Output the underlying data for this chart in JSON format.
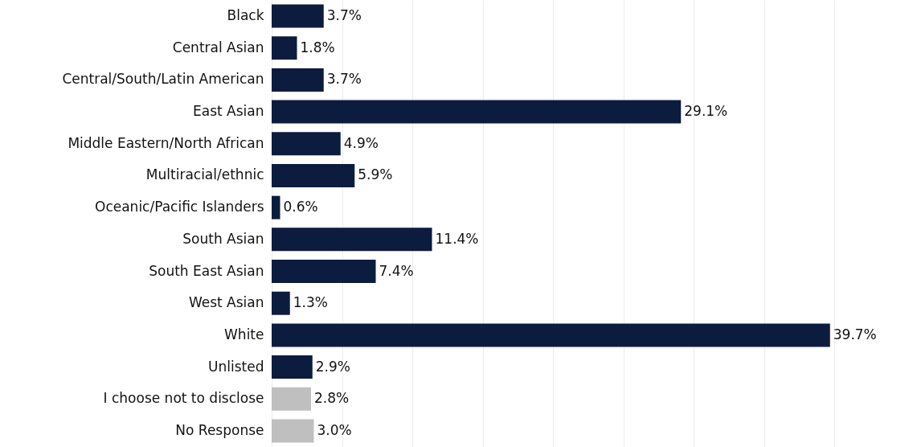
{
  "chart_data": {
    "type": "bar",
    "orientation": "horizontal",
    "categories": [
      "Black",
      "Central Asian",
      "Central/South/Latin American",
      "East Asian",
      "Middle Eastern/North African",
      "Multiracial/ethnic",
      "Oceanic/Pacific Islanders",
      "South Asian",
      "South East Asian",
      "West Asian",
      "White",
      "Unlisted",
      "I choose not to disclose",
      "No Response"
    ],
    "values": [
      3.7,
      1.8,
      3.7,
      29.1,
      4.9,
      5.9,
      0.6,
      11.4,
      7.4,
      1.3,
      39.7,
      2.9,
      2.8,
      3.0
    ],
    "value_labels": [
      "3.7%",
      "1.8%",
      "3.7%",
      "29.1%",
      "4.9%",
      "5.9%",
      "0.6%",
      "11.4%",
      "7.4%",
      "1.3%",
      "39.7%",
      "2.9%",
      "2.8%",
      "3.0%"
    ],
    "colors": [
      "#0c1c3e",
      "#0c1c3e",
      "#0c1c3e",
      "#0c1c3e",
      "#0c1c3e",
      "#0c1c3e",
      "#0c1c3e",
      "#0c1c3e",
      "#0c1c3e",
      "#0c1c3e",
      "#0c1c3e",
      "#0c1c3e",
      "#bfbfbf",
      "#bfbfbf"
    ],
    "xticks": [
      {
        "value": 0,
        "label": null
      },
      {
        "value": 5,
        "label": null
      },
      {
        "value": 10,
        "label": null
      },
      {
        "value": 15,
        "label": null
      },
      {
        "value": 20,
        "label": null
      },
      {
        "value": 25,
        "label": null
      },
      {
        "value": 30,
        "label": null
      },
      {
        "value": 35,
        "label": null
      },
      {
        "value": 40,
        "label": null
      }
    ],
    "xlim": [
      0,
      40
    ],
    "grid": "x",
    "tick_labels": "y"
  }
}
